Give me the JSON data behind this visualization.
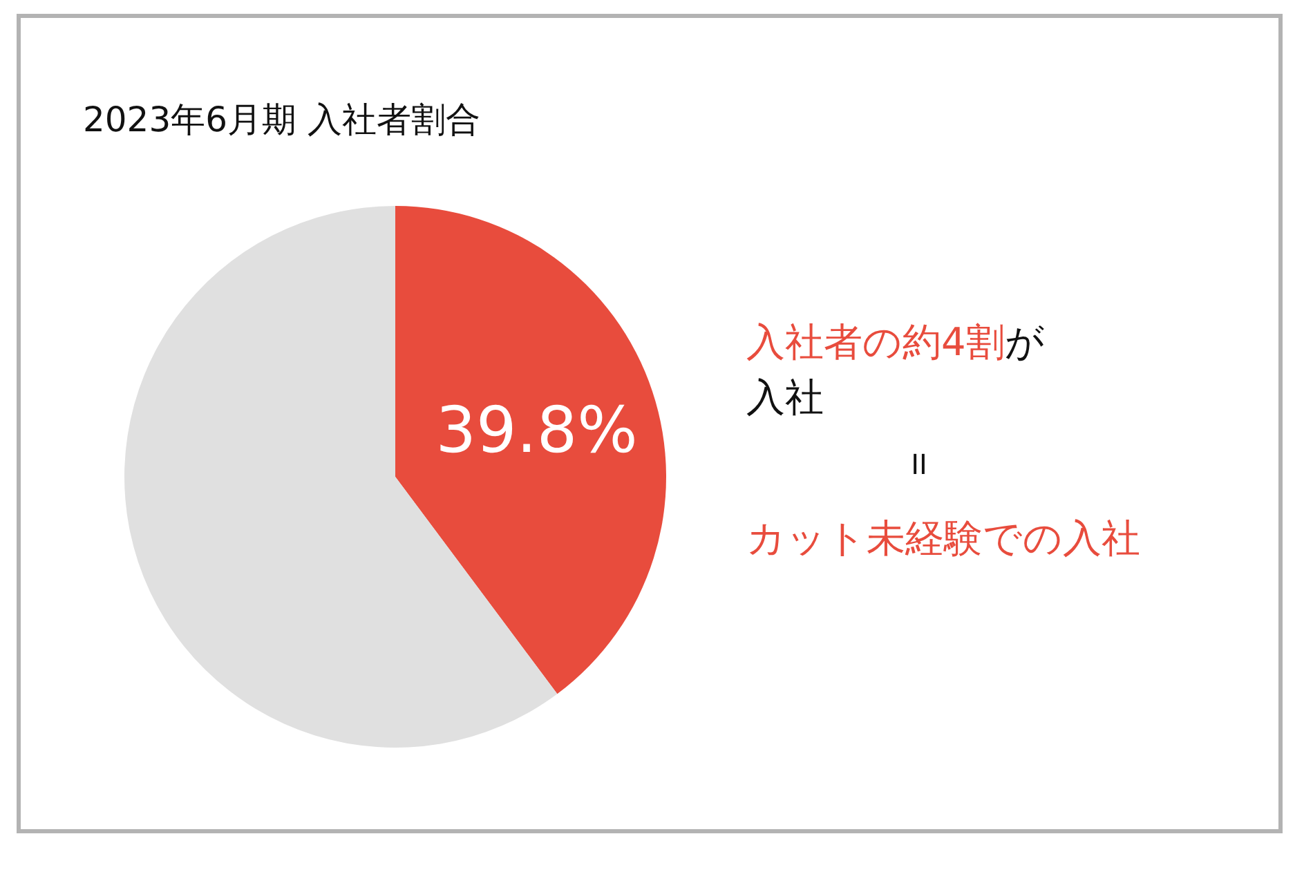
{
  "chart_data": {
    "type": "pie",
    "title": "2023年6月期 入社者割合",
    "categories": [
      null,
      null
    ],
    "values": [
      39.8,
      60.2
    ],
    "colors": [
      "#e84c3d",
      "#e0e0e0"
    ],
    "value_labels": [
      "39.8%",
      null
    ],
    "annotations": [
      "入社者の約4割",
      "が",
      "入社",
      "II",
      "カット未経験での入社"
    ]
  }
}
